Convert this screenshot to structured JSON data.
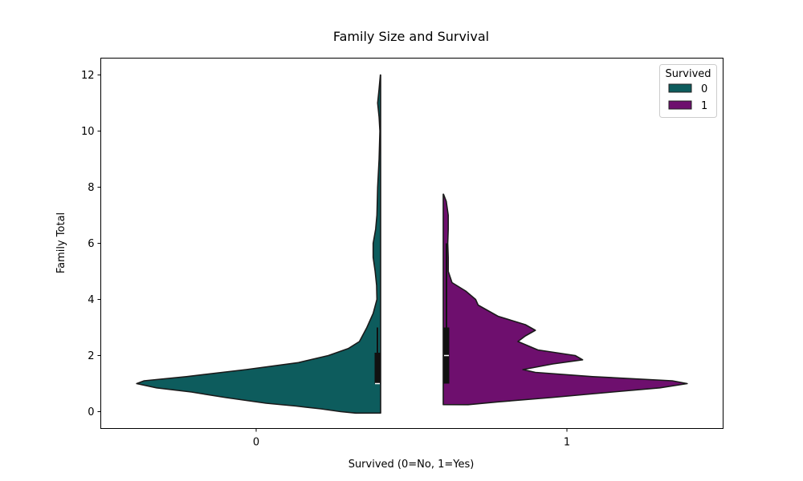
{
  "chart_data": {
    "type": "violin",
    "title": "Family Size and Survival",
    "xlabel": "Survived (0=No, 1=Yes)",
    "ylabel": "Family Total",
    "categories": [
      "0",
      "1"
    ],
    "ylim": [
      -0.6,
      12.6
    ],
    "yticks": [
      "0",
      "2",
      "4",
      "6",
      "8",
      "10",
      "12"
    ],
    "grid": false,
    "legend": {
      "title": "Survived",
      "placement": "top-right",
      "entries": [
        "0",
        "1"
      ]
    },
    "series": [
      {
        "legend_label": "0",
        "color": "#0d5c5d",
        "side": "left",
        "category": "0",
        "range": [
          -0.05,
          12.0
        ],
        "density_profile": [
          [
            -0.05,
            0.1
          ],
          [
            0.0,
            0.16
          ],
          [
            0.1,
            0.24
          ],
          [
            0.2,
            0.34
          ],
          [
            0.3,
            0.46
          ],
          [
            0.5,
            0.62
          ],
          [
            0.7,
            0.76
          ],
          [
            0.85,
            0.9
          ],
          [
            1.0,
            0.98
          ],
          [
            1.1,
            0.95
          ],
          [
            1.25,
            0.78
          ],
          [
            1.5,
            0.54
          ],
          [
            1.75,
            0.33
          ],
          [
            2.0,
            0.21
          ],
          [
            2.25,
            0.13
          ],
          [
            2.5,
            0.085
          ],
          [
            3.0,
            0.055
          ],
          [
            3.5,
            0.03
          ],
          [
            4.0,
            0.015
          ],
          [
            4.5,
            0.016
          ],
          [
            5.0,
            0.022
          ],
          [
            5.5,
            0.03
          ],
          [
            6.0,
            0.03
          ],
          [
            6.5,
            0.02
          ],
          [
            7.0,
            0.015
          ],
          [
            8.0,
            0.012
          ],
          [
            9.0,
            0.006
          ],
          [
            10.0,
            0.003
          ],
          [
            10.5,
            0.006
          ],
          [
            11.0,
            0.012
          ],
          [
            11.5,
            0.006
          ],
          [
            12.0,
            0.001
          ]
        ],
        "box": {
          "q1": 1,
          "median": 1,
          "q3": 2.1,
          "whisker_low": 1,
          "whisker_high": 3
        }
      },
      {
        "legend_label": "1",
        "color": "#6e0f6e",
        "side": "right",
        "category": "1",
        "range": [
          0.25,
          7.75
        ],
        "density_profile": [
          [
            0.25,
            0.1
          ],
          [
            0.35,
            0.22
          ],
          [
            0.5,
            0.43
          ],
          [
            0.7,
            0.68
          ],
          [
            0.85,
            0.87
          ],
          [
            1.0,
            0.98
          ],
          [
            1.1,
            0.92
          ],
          [
            1.25,
            0.6
          ],
          [
            1.4,
            0.37
          ],
          [
            1.5,
            0.32
          ],
          [
            1.7,
            0.44
          ],
          [
            1.85,
            0.56
          ],
          [
            2.0,
            0.53
          ],
          [
            2.2,
            0.38
          ],
          [
            2.5,
            0.3
          ],
          [
            2.7,
            0.33
          ],
          [
            2.9,
            0.37
          ],
          [
            3.1,
            0.33
          ],
          [
            3.4,
            0.22
          ],
          [
            3.8,
            0.14
          ],
          [
            4.0,
            0.13
          ],
          [
            4.3,
            0.09
          ],
          [
            4.6,
            0.035
          ],
          [
            5.0,
            0.02
          ],
          [
            5.5,
            0.02
          ],
          [
            6.0,
            0.018
          ],
          [
            6.5,
            0.02
          ],
          [
            7.0,
            0.02
          ],
          [
            7.5,
            0.012
          ],
          [
            7.75,
            0.001
          ]
        ],
        "box": {
          "q1": 1,
          "median": 2,
          "q3": 3,
          "whisker_low": 1,
          "whisker_high": 6
        }
      }
    ]
  }
}
